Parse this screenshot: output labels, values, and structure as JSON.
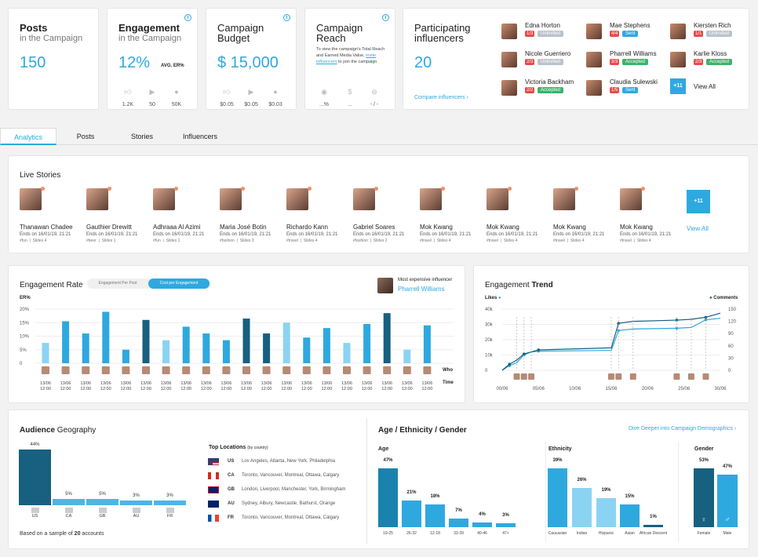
{
  "top": {
    "posts": {
      "title": "Posts",
      "subtitle": "in the Campaign",
      "value": "150"
    },
    "engagement": {
      "title": "Engagement",
      "subtitle": "in the Campaign",
      "value": "12%",
      "avg_label": "AVG. ER%",
      "metrics": [
        "1.2K",
        "50",
        "50K"
      ]
    },
    "budget": {
      "title_line1": "Campaign",
      "title_line2": "Budget",
      "value": "$ 15,000",
      "metrics": [
        "$0.05",
        "$0.05",
        "$0.03"
      ]
    },
    "reach": {
      "title_line1": "Campaign",
      "title_line2": "Reach",
      "description": "To view the campaign's Total Reach and Earned Media Value,",
      "link": "invite influencers",
      "description_end": "to join the campaign",
      "metrics": [
        "...%",
        "...",
        "- / -"
      ]
    },
    "influencers": {
      "title_line1": "Participating",
      "title_line2": "influencers",
      "value": "20",
      "compare_link": "Compare influencers",
      "more_badge": "+11",
      "view_all": "View All",
      "items": [
        {
          "name": "Edna Horton",
          "count": "1/3",
          "status": "Uninvited",
          "status_color": "#b9c3cb"
        },
        {
          "name": "Mae Stephens",
          "count": "4/4",
          "status": "Sent",
          "status_color": "#2ea9df"
        },
        {
          "name": "Kiersten Rich",
          "count": "1/1",
          "status": "Uninvited",
          "status_color": "#b9c3cb"
        },
        {
          "name": "Nicole Guerriero",
          "count": "2/3",
          "status": "Uninvited",
          "status_color": "#b9c3cb"
        },
        {
          "name": "Pharrell Williams",
          "count": "3/3",
          "status": "Accepted",
          "status_color": "#3bb36b"
        },
        {
          "name": "Karlie Kloss",
          "count": "2/3",
          "status": "Accepted",
          "status_color": "#3bb36b"
        },
        {
          "name": "Victoria Backham",
          "count": "2/2",
          "status": "Accepted",
          "status_color": "#3bb36b"
        },
        {
          "name": "Claudia Sulewski",
          "count": "1/5",
          "status": "Sent",
          "status_color": "#2ea9df"
        }
      ]
    }
  },
  "tabs": [
    "Analytics",
    "Posts",
    "Stories",
    "Influencers"
  ],
  "live_stories": {
    "title": "Live Stories",
    "more_badge": "+11",
    "view_all": "View All",
    "items": [
      {
        "name": "Thanawan Chadee",
        "ends": "Ends on 16/01/19, 21:21",
        "tag": "#fun",
        "slides": "Slides 4"
      },
      {
        "name": "Gauthier Drewitt",
        "ends": "Ends on 16/01/19, 21:21",
        "tag": "#beer",
        "slides": "Slides 1"
      },
      {
        "name": "Adhraaa Al Azimi",
        "ends": "Ends on 16/01/19, 21:21",
        "tag": "#fun",
        "slides": "Slides 1"
      },
      {
        "name": "Maria José Botin",
        "ends": "Ends on 16/01/19, 21:21",
        "tag": "#fashion",
        "slides": "Slides 3"
      },
      {
        "name": "Richardo Kann",
        "ends": "Ends on 16/01/19, 21:21",
        "tag": "#travel",
        "slides": "Slides 4"
      },
      {
        "name": "Gabriel Soares",
        "ends": "Ends on 16/01/19, 21:21",
        "tag": "#fashion",
        "slides": "Slides 2"
      },
      {
        "name": "Mok Kwang",
        "ends": "Ends on 16/01/19, 21:21",
        "tag": "#travel",
        "slides": "Slides 4"
      },
      {
        "name": "Mok Kwang",
        "ends": "Ends on 16/01/19, 21:21",
        "tag": "#travel",
        "slides": "Slides 4"
      },
      {
        "name": "Mok Kwang",
        "ends": "Ends on 16/01/19, 21:21",
        "tag": "#travel",
        "slides": "Slides 4"
      },
      {
        "name": "Mok Kwang",
        "ends": "Ends on 16/01/19, 21:21",
        "tag": "#travel",
        "slides": "Slides 4"
      }
    ]
  },
  "engagement_rate": {
    "title": "Engagement Rate",
    "toggle_a": "Engagement Per Post",
    "toggle_b": "Cost per Engagement",
    "expensive_label": "Most expensive influencer",
    "expensive_name": "Pharrell Williams",
    "ylabel": "ER%",
    "who_label": "Who",
    "time_label": "Time"
  },
  "engagement_trend": {
    "title_a": "Engagement",
    "title_b": "Trend",
    "left_label": "Likes",
    "right_label": "Comments"
  },
  "chart_data": [
    {
      "type": "bar",
      "title": "Engagement Rate",
      "ylabel": "ER%",
      "ylim": [
        0,
        20
      ],
      "yticks": [
        "0",
        "5%",
        "10%",
        "15%",
        "20%"
      ],
      "categories": [
        "13/06 12:00",
        "13/06 12:00",
        "13/06 12:00",
        "13/06 12:00",
        "13/06 12:00",
        "13/06 12:00",
        "13/06 12:00",
        "13/06 12:00",
        "13/06 12:00",
        "13/06 12:00",
        "13/06 12:00",
        "13/06 12:00",
        "13/06 12:00",
        "13/06 12:00",
        "13/06 12:00",
        "13/06 12:00",
        "13/06 12:00",
        "13/06 12:00",
        "13/06 12:00",
        "13/06 12:00"
      ],
      "x_date": "13/06",
      "x_time": "12:00",
      "values": [
        7.5,
        15.5,
        11,
        19,
        5,
        16,
        8.5,
        13.5,
        11,
        8.5,
        16.5,
        11,
        15,
        9.5,
        13,
        7.5,
        14.5,
        18.5,
        5,
        14
      ]
    },
    {
      "type": "line",
      "title": "Engagement Trend",
      "left_ylim": [
        0,
        40000
      ],
      "left_yticks": [
        "0",
        "10k",
        "20k",
        "30k",
        "40k"
      ],
      "right_ylim": [
        0,
        150
      ],
      "right_yticks": [
        "0",
        "30",
        "60",
        "90",
        "120",
        "150"
      ],
      "x_ticks": [
        "00/06",
        "05/06",
        "10/06",
        "15/06",
        "20/06",
        "25/06",
        "30/06"
      ],
      "x_range": [
        0,
        30
      ],
      "series": [
        {
          "name": "Likes",
          "axis": "left",
          "x": [
            1,
            2,
            3,
            4,
            5,
            15,
            16,
            18,
            24,
            26,
            28,
            30
          ],
          "y": [
            3000,
            5000,
            10000,
            12000,
            12500,
            13000,
            26000,
            27000,
            27500,
            28000,
            33000,
            34000
          ]
        },
        {
          "name": "Comments",
          "axis": "right",
          "x": [
            1,
            2,
            3,
            4,
            5,
            15,
            16,
            18,
            24,
            26,
            28,
            30
          ],
          "y": [
            15,
            25,
            40,
            45,
            50,
            55,
            115,
            120,
            123,
            125,
            130,
            140
          ]
        }
      ]
    },
    {
      "type": "bar",
      "title": "Audience Geography",
      "categories": [
        "US",
        "CA",
        "GB",
        "AU",
        "FR"
      ],
      "values": [
        44,
        5,
        5,
        3,
        3
      ],
      "labels": [
        "44%",
        "5%",
        "5%",
        "3%",
        "3%"
      ],
      "ylim": [
        0,
        44
      ]
    },
    {
      "type": "bar",
      "title": "Age",
      "categories": [
        "19-25",
        "26-32",
        "12-18",
        "33-39",
        "40-46",
        "47+"
      ],
      "values": [
        47,
        21,
        18,
        7,
        4,
        3
      ],
      "labels": [
        "47%",
        "21%",
        "18%",
        "7%",
        "4%",
        "3%"
      ],
      "ylim": [
        0,
        47
      ]
    },
    {
      "type": "bar",
      "title": "Ethnicity",
      "categories": [
        "Caucasian",
        "Indian",
        "Hispanic",
        "Asian",
        "African Descent"
      ],
      "values": [
        39,
        26,
        19,
        15,
        1
      ],
      "labels": [
        "39%",
        "26%",
        "19%",
        "15%",
        "1%"
      ],
      "ylim": [
        0,
        39
      ]
    },
    {
      "type": "bar",
      "title": "Gender",
      "categories": [
        "Female",
        "Male"
      ],
      "values": [
        53,
        47
      ],
      "labels": [
        "53%",
        "47%"
      ],
      "ylim": [
        0,
        53
      ]
    }
  ],
  "geo": {
    "title_a": "Audience",
    "title_b": "Geography",
    "top_locations": "Top Locations",
    "by_country": "(by country)",
    "sample_text_a": "Based on a sample of",
    "sample_count": "20",
    "sample_text_b": "accounts",
    "locations": [
      {
        "code": "US",
        "cities": "Los Angeles, Atlanta, New York, Philadelphia"
      },
      {
        "code": "CA",
        "cities": "Toronto, Vancouver, Montreal, Ottawa, Calgary"
      },
      {
        "code": "GB",
        "cities": "London, Liverpool, Manchester, York, Birmingham"
      },
      {
        "code": "AU",
        "cities": "Sydney, Albury, Newcastle, Bathurst, Orange"
      },
      {
        "code": "FR",
        "cities": "Toronto, Vancouver, Montreal, Ottawa, Calgary"
      }
    ]
  },
  "demo": {
    "title": "Age / Ethnicity / Gender",
    "link": "Dive Deeper into Campaign Demographics",
    "age_title": "Age",
    "ethnicity_title": "Ethnicity",
    "gender_title": "Gender"
  },
  "colors": {
    "accent": "#2ea9df",
    "dark": "#17607f",
    "light": "#8bd3f3",
    "mid": "#2ea9df"
  }
}
